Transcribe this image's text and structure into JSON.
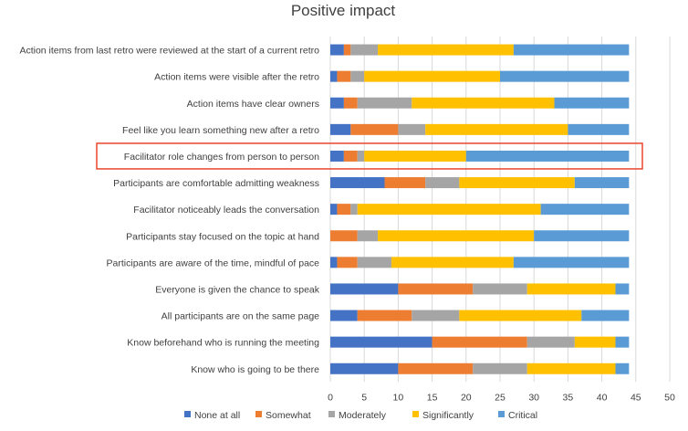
{
  "chart_data": {
    "type": "bar",
    "orientation": "horizontal",
    "stacked": true,
    "title": "Positive impact",
    "xlabel": "",
    "ylabel": "",
    "xlim": [
      0,
      50
    ],
    "xticks": [
      0,
      5,
      10,
      15,
      20,
      25,
      30,
      35,
      40,
      45,
      50
    ],
    "grid": "vertical",
    "legend_position": "bottom",
    "highlighted_category": "Facilitator role changes from person to person",
    "highlight_color": "#e8462a",
    "categories": [
      "Action items from last retro were reviewed at the start of a current retro",
      "Action items were visible after the retro",
      "Action items have clear owners",
      "Feel like you learn something new after a retro",
      "Facilitator role changes from person to person",
      "Participants are comfortable admitting weakness",
      "Facilitator noticeably leads the conversation",
      "Participants stay focused on the topic at hand",
      "Participants are aware of the time, mindful of pace",
      "Everyone is given the chance to speak",
      "All participants are on the same page",
      "Know beforehand who is running the meeting",
      "Know who is going to be there"
    ],
    "series": [
      {
        "name": "None at all",
        "color": "#4472c4",
        "values": [
          2,
          1,
          2,
          3,
          2,
          8,
          1,
          0,
          1,
          10,
          4,
          15,
          10
        ]
      },
      {
        "name": "Somewhat",
        "color": "#ed7d31",
        "values": [
          1,
          2,
          2,
          7,
          2,
          6,
          2,
          4,
          3,
          11,
          8,
          14,
          11
        ]
      },
      {
        "name": "Moderately",
        "color": "#a5a5a5",
        "values": [
          4,
          2,
          8,
          4,
          1,
          5,
          1,
          3,
          5,
          8,
          7,
          7,
          8
        ]
      },
      {
        "name": "Significantly",
        "color": "#ffc000",
        "values": [
          20,
          20,
          21,
          21,
          15,
          17,
          27,
          23,
          18,
          13,
          18,
          6,
          13
        ]
      },
      {
        "name": "Critical",
        "color": "#5b9bd5",
        "values": [
          17,
          19,
          11,
          9,
          24,
          8,
          13,
          14,
          17,
          2,
          7,
          2,
          2
        ]
      }
    ]
  }
}
